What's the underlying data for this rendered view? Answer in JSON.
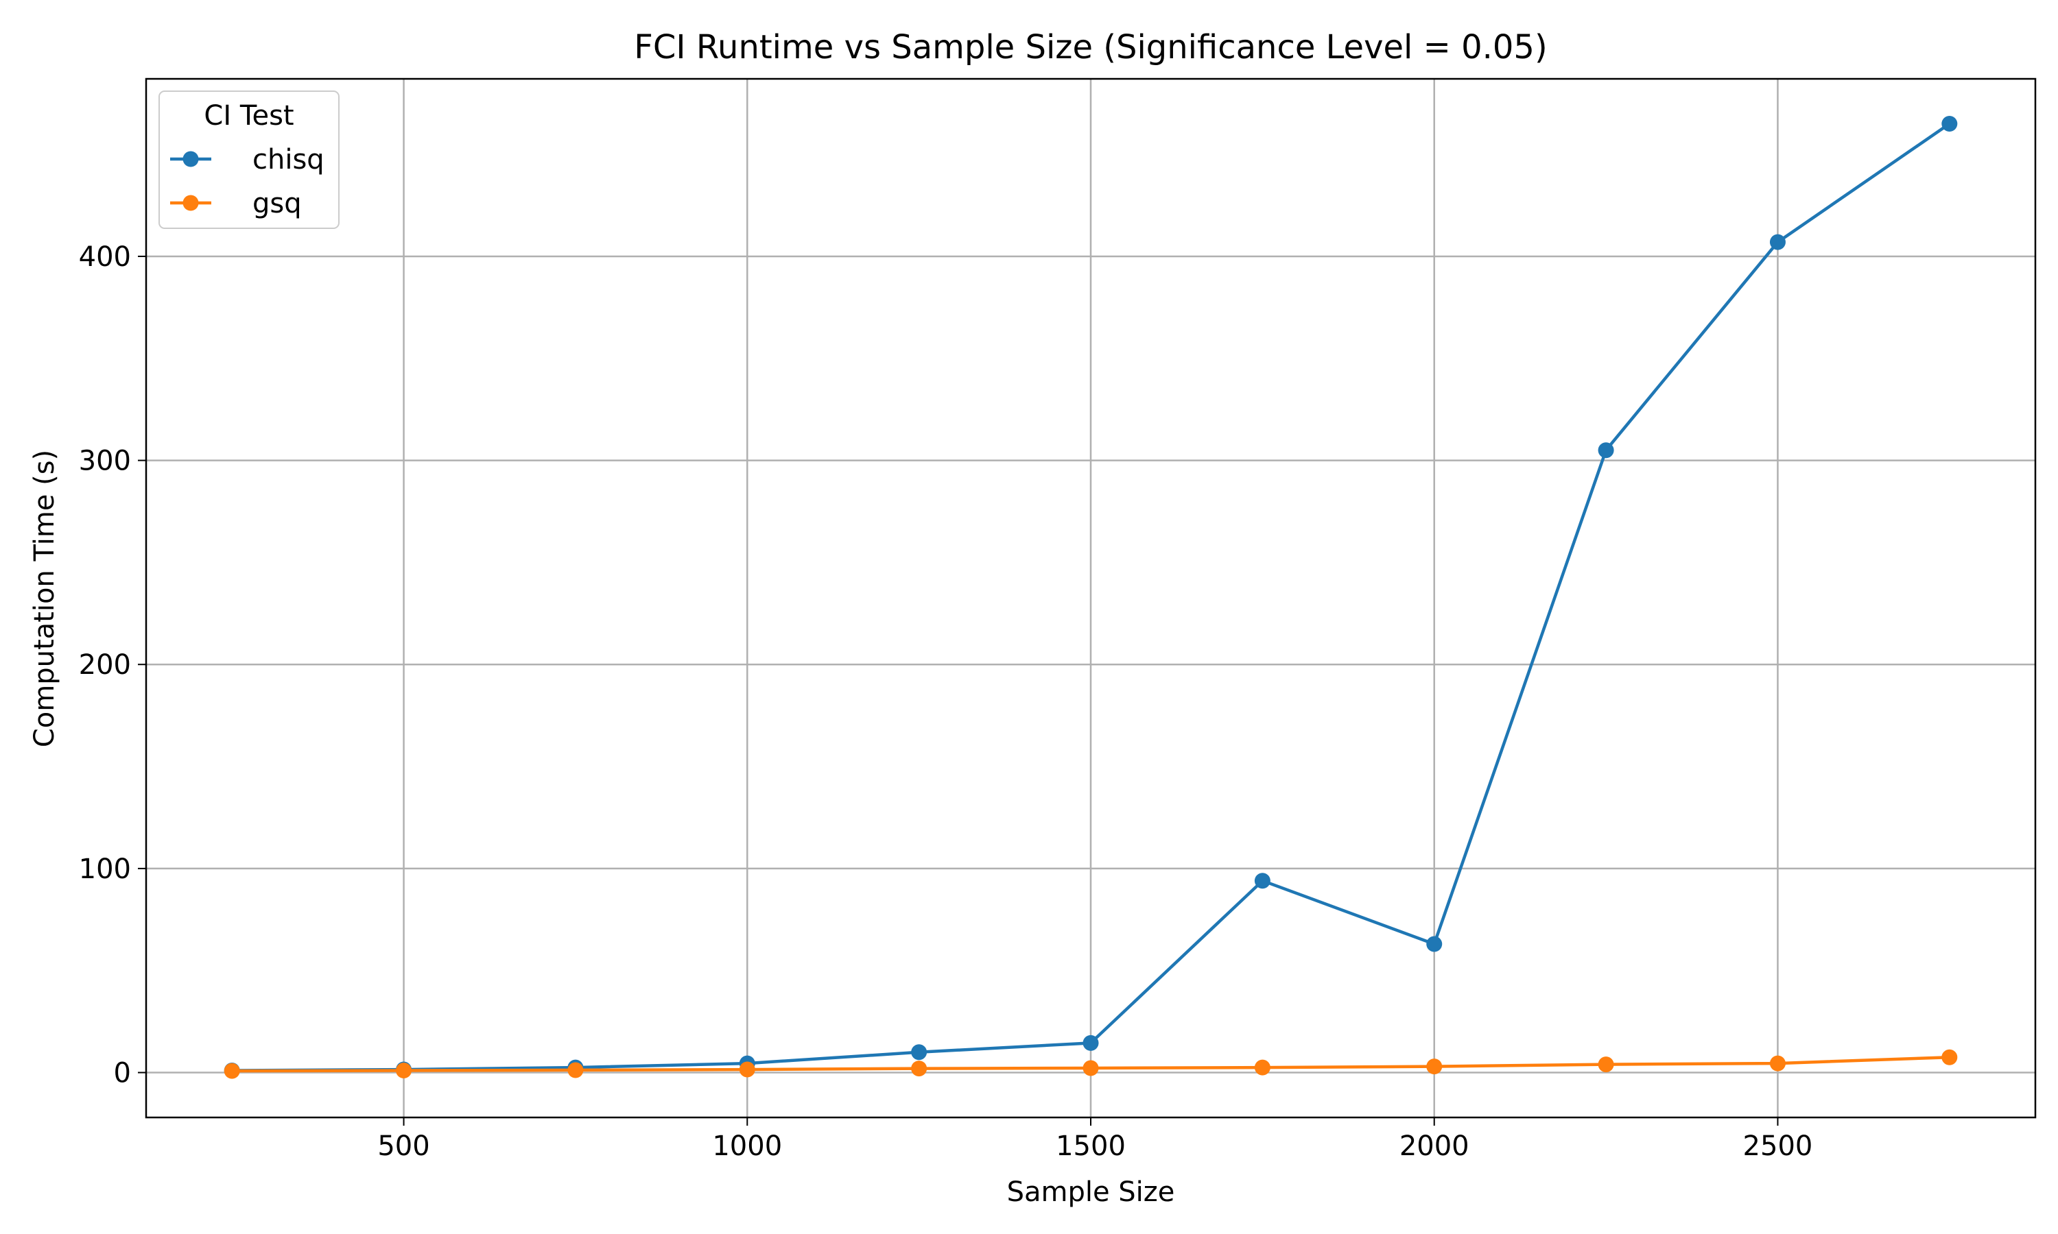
{
  "chart_data": {
    "type": "line",
    "title": "FCI Runtime vs Sample Size (Significance Level = 0.05)",
    "xlabel": "Sample Size",
    "ylabel": "Computation Time (s)",
    "x": [
      250,
      500,
      750,
      1000,
      1250,
      1500,
      1750,
      2000,
      2250,
      2500,
      2750
    ],
    "xlim": [
      125,
      2875
    ],
    "ylim": [
      -22,
      487
    ],
    "xticks": [
      500,
      1000,
      1500,
      2000,
      2500
    ],
    "yticks": [
      0,
      100,
      200,
      300,
      400
    ],
    "grid": true,
    "legend": {
      "title": "CI Test",
      "position": "top-left"
    },
    "series": [
      {
        "name": "chisq",
        "color": "#1f77b4",
        "marker": "circle",
        "values": [
          1.0,
          1.5,
          2.5,
          4.5,
          10.0,
          14.5,
          94.0,
          63.0,
          305.0,
          407.0,
          465.0
        ]
      },
      {
        "name": "gsq",
        "color": "#ff7f0e",
        "marker": "circle",
        "values": [
          0.8,
          1.0,
          1.2,
          1.5,
          2.0,
          2.2,
          2.5,
          3.0,
          4.0,
          4.5,
          7.5
        ]
      }
    ]
  }
}
